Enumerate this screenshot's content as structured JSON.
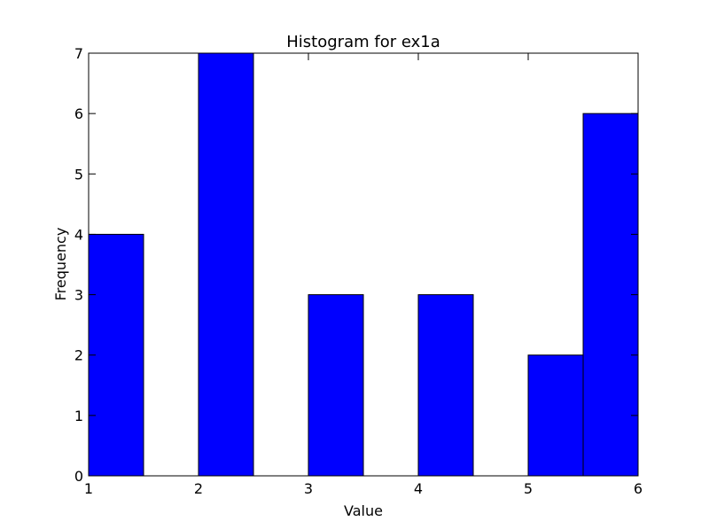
{
  "chart_data": {
    "type": "bar",
    "title": "Histogram for ex1a",
    "xlabel": "Value",
    "ylabel": "Frequency",
    "xlim": [
      1,
      6
    ],
    "ylim": [
      0,
      7
    ],
    "xticks": [
      "1",
      "2",
      "3",
      "4",
      "5",
      "6"
    ],
    "yticks": [
      "0",
      "1",
      "2",
      "3",
      "4",
      "5",
      "6",
      "7"
    ],
    "bins": [
      {
        "start": 1.0,
        "end": 1.5,
        "count": 4
      },
      {
        "start": 1.5,
        "end": 2.0,
        "count": 0
      },
      {
        "start": 2.0,
        "end": 2.5,
        "count": 7
      },
      {
        "start": 2.5,
        "end": 3.0,
        "count": 0
      },
      {
        "start": 3.0,
        "end": 3.5,
        "count": 3
      },
      {
        "start": 3.5,
        "end": 4.0,
        "count": 0
      },
      {
        "start": 4.0,
        "end": 4.5,
        "count": 3
      },
      {
        "start": 4.5,
        "end": 5.0,
        "count": 0
      },
      {
        "start": 5.0,
        "end": 5.5,
        "count": 2
      },
      {
        "start": 5.5,
        "end": 6.0,
        "count": 6
      }
    ],
    "bar_color": "#0000ff",
    "edge_color": "#000000",
    "grid": false
  }
}
